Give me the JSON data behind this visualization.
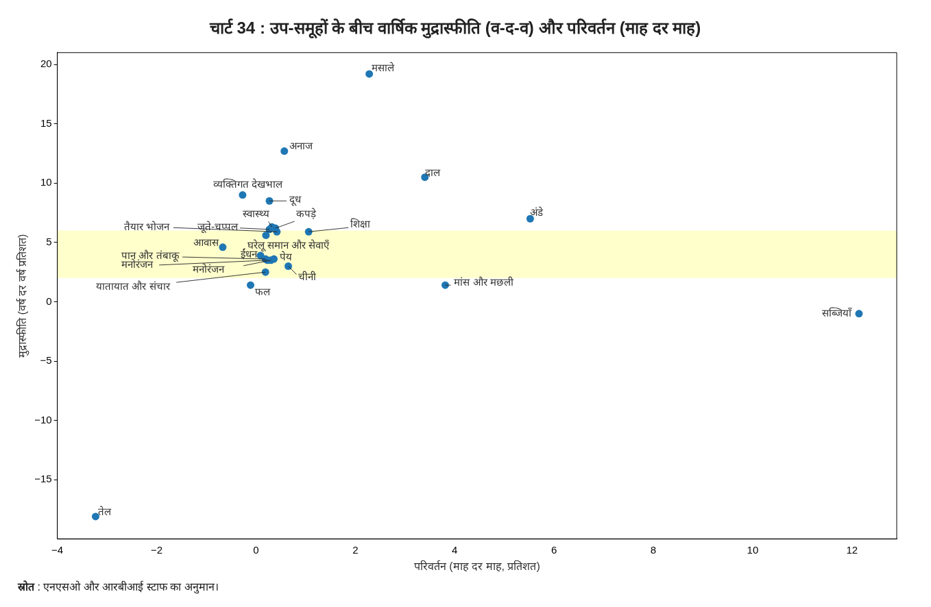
{
  "chart_data": {
    "type": "scatter",
    "title": "चार्ट 34 : उप-समूहों के बीच वार्षिक मुद्रास्फीति (व-द-व) और परिवर्तन (माह दर माह)",
    "xlabel": "परिवर्तन (माह दर माह, प्रतिशत)",
    "ylabel": "मुद्रास्फीति (वर्ष दर वर्ष प्रतिशत)",
    "annotations": [
      "स्रोत : एनएसओ और आरबीआई स्टाफ का अनुमान।"
    ],
    "xlim": [
      -4,
      12.9
    ],
    "xticks": [
      -4,
      -2,
      0,
      2,
      4,
      6,
      8,
      10,
      12
    ],
    "ylim": [
      -20,
      21
    ],
    "yticks": [
      -15,
      -10,
      -5,
      0,
      5,
      10,
      15,
      20
    ],
    "grid": false,
    "legend": false,
    "marker": "circle",
    "bands": [
      {
        "axis": "y",
        "from": 2,
        "to": 6,
        "color": "#ffffcc"
      }
    ],
    "series": [
      {
        "color": "#1f77b4",
        "x": [
          2.28,
          0.57,
          3.4,
          -0.27,
          0.27,
          5.52,
          3.81,
          12.14,
          -3.23,
          -0.11,
          1.06,
          0.32,
          0.39,
          0.27,
          0.42,
          0.2,
          -0.67,
          0.09,
          0.19,
          0.3,
          0.23,
          0.36,
          0.65,
          0.19
        ],
        "values": [
          19.2,
          12.7,
          10.5,
          9.0,
          8.5,
          7.0,
          1.4,
          -1.0,
          -18.1,
          1.4,
          5.9,
          6.3,
          6.2,
          6.1,
          5.9,
          5.6,
          4.6,
          3.9,
          3.6,
          3.5,
          3.5,
          3.6,
          3.0,
          2.5
        ],
        "value_labels": [
          "मसाले",
          "अनाज",
          "दाल",
          "व्यक्तिगत देखभाल",
          "दूध",
          "अंडे",
          "मांस और मछली",
          "सब्जियाँ",
          "तेल",
          "फल",
          "शिक्षा",
          "स्वास्थ्य",
          "कपड़े",
          "जूते-चप्पल",
          "तैयार भोजन",
          "घरेलू समान और सेवाएँ",
          "आवास",
          "ईंधन",
          "पान और तंबाकू",
          "मनोरंजन",
          "मनोरंजन",
          "पेय",
          "चीनी",
          "यातायात और संचार"
        ]
      }
    ]
  }
}
